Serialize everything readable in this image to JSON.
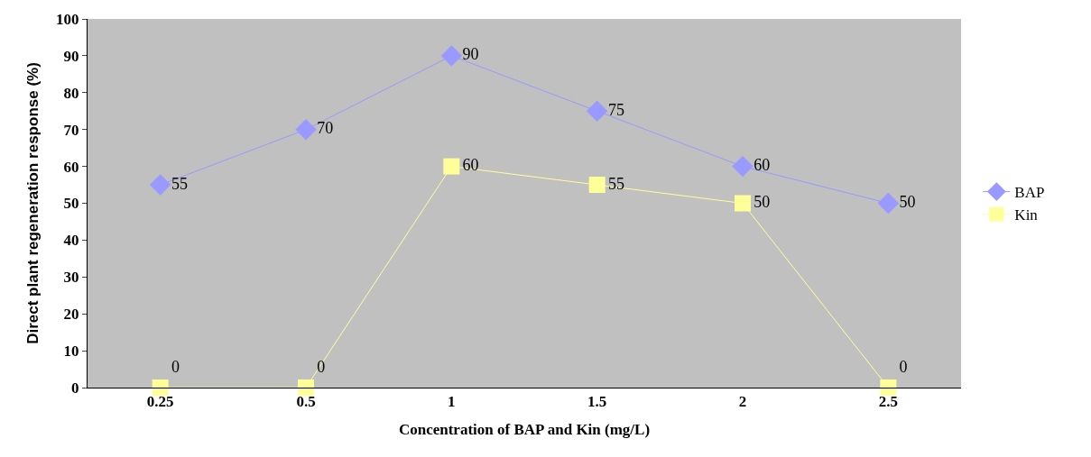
{
  "chart_data": {
    "type": "line",
    "xlabel": "Concentration of BAP and Kin (mg/L)",
    "ylabel": "Direct plant regeneration response (%)",
    "categories": [
      "0.25",
      "0.5",
      "1",
      "1.5",
      "2",
      "2.5"
    ],
    "series": [
      {
        "name": "BAP",
        "color": "#9999ff",
        "marker": "diamond",
        "values": [
          55,
          70,
          90,
          75,
          60,
          50
        ]
      },
      {
        "name": "Kin",
        "color": "#ffff99",
        "marker": "square",
        "values": [
          0,
          0,
          60,
          55,
          50,
          0
        ]
      }
    ],
    "ylim": [
      0,
      100
    ],
    "yticks": [
      0,
      10,
      20,
      30,
      40,
      50,
      60,
      70,
      80,
      90,
      100
    ],
    "data_labels": true,
    "grid": false,
    "legend": "right",
    "line_style": "solid"
  }
}
